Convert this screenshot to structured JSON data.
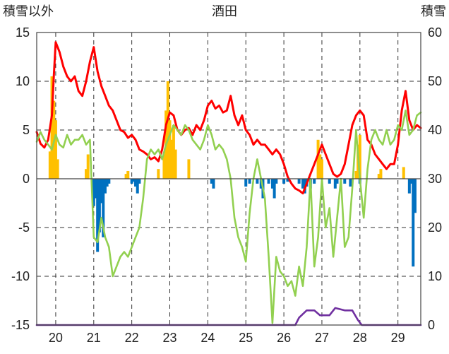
{
  "chart_data": {
    "type": "line",
    "title": "酒田",
    "ylabel_left": "積雪以外",
    "ylabel_right": "積雪",
    "x_ticks": [
      "20",
      "21",
      "22",
      "23",
      "24",
      "25",
      "26",
      "27",
      "28",
      "29"
    ],
    "xlim": [
      19.5,
      29.6
    ],
    "ylim_left": [
      -15,
      15
    ],
    "ylim_right": [
      0,
      60
    ],
    "y_ticks_left": [
      "15",
      "10",
      "5",
      "0",
      "-5",
      "-10",
      "-15"
    ],
    "y_ticks_right": [
      "60",
      "50",
      "40",
      "30",
      "20",
      "10",
      "0"
    ],
    "grid": true,
    "series": [
      {
        "color": "#ff0000",
        "axis": "left",
        "points": [
          [
            19.5,
            4.8
          ],
          [
            19.6,
            3.6
          ],
          [
            19.7,
            3.2
          ],
          [
            19.8,
            4.0
          ],
          [
            19.9,
            6.5
          ],
          [
            19.95,
            10.5
          ],
          [
            20.0,
            14.0
          ],
          [
            20.1,
            13.0
          ],
          [
            20.2,
            11.5
          ],
          [
            20.3,
            10.5
          ],
          [
            20.4,
            10.0
          ],
          [
            20.5,
            10.5
          ],
          [
            20.6,
            9.0
          ],
          [
            20.7,
            8.5
          ],
          [
            20.8,
            10.0
          ],
          [
            20.9,
            12.0
          ],
          [
            21.0,
            13.5
          ],
          [
            21.1,
            11.0
          ],
          [
            21.2,
            9.5
          ],
          [
            21.3,
            8.5
          ],
          [
            21.4,
            7.5
          ],
          [
            21.5,
            7.0
          ],
          [
            21.6,
            6.0
          ],
          [
            21.7,
            5.0
          ],
          [
            21.8,
            4.8
          ],
          [
            21.9,
            4.2
          ],
          [
            22.0,
            4.5
          ],
          [
            22.1,
            4.0
          ],
          [
            22.2,
            3.0
          ],
          [
            22.3,
            2.8
          ],
          [
            22.4,
            2.5
          ],
          [
            22.5,
            2.0
          ],
          [
            22.6,
            2.2
          ],
          [
            22.7,
            1.8
          ],
          [
            22.8,
            3.0
          ],
          [
            22.9,
            5.5
          ],
          [
            23.0,
            6.8
          ],
          [
            23.1,
            6.5
          ],
          [
            23.2,
            5.0
          ],
          [
            23.3,
            4.5
          ],
          [
            23.4,
            5.0
          ],
          [
            23.5,
            5.2
          ],
          [
            23.6,
            4.5
          ],
          [
            23.7,
            5.5
          ],
          [
            23.8,
            5.0
          ],
          [
            23.9,
            6.0
          ],
          [
            24.0,
            7.5
          ],
          [
            24.1,
            8.0
          ],
          [
            24.2,
            7.2
          ],
          [
            24.3,
            7.5
          ],
          [
            24.4,
            6.8
          ],
          [
            24.5,
            7.0
          ],
          [
            24.6,
            8.5
          ],
          [
            24.7,
            6.5
          ],
          [
            24.8,
            5.5
          ],
          [
            24.9,
            6.5
          ],
          [
            25.0,
            5.0
          ],
          [
            25.1,
            4.5
          ],
          [
            25.2,
            3.5
          ],
          [
            25.3,
            4.0
          ],
          [
            25.4,
            3.5
          ],
          [
            25.5,
            3.5
          ],
          [
            25.6,
            3.0
          ],
          [
            25.7,
            2.5
          ],
          [
            25.8,
            3.0
          ],
          [
            25.9,
            2.5
          ],
          [
            26.0,
            1.5
          ],
          [
            26.1,
            0.2
          ],
          [
            26.2,
            -0.5
          ],
          [
            26.3,
            -1.0
          ],
          [
            26.4,
            -1.2
          ],
          [
            26.5,
            -1.5
          ],
          [
            26.6,
            -0.5
          ],
          [
            26.7,
            0.5
          ],
          [
            26.8,
            1.5
          ],
          [
            26.9,
            2.5
          ],
          [
            27.0,
            3.5
          ],
          [
            27.1,
            2.5
          ],
          [
            27.2,
            1.5
          ],
          [
            27.3,
            0.5
          ],
          [
            27.4,
            0.2
          ],
          [
            27.5,
            0.5
          ],
          [
            27.6,
            1.5
          ],
          [
            27.7,
            3.5
          ],
          [
            27.8,
            5.5
          ],
          [
            27.9,
            6.5
          ],
          [
            28.0,
            7.0
          ],
          [
            28.1,
            6.5
          ],
          [
            28.2,
            4.0
          ],
          [
            28.3,
            3.5
          ],
          [
            28.4,
            2.5
          ],
          [
            28.5,
            2.0
          ],
          [
            28.6,
            1.5
          ],
          [
            28.7,
            1.0
          ],
          [
            28.8,
            1.5
          ],
          [
            28.9,
            1.5
          ],
          [
            29.0,
            3.5
          ],
          [
            29.1,
            7.0
          ],
          [
            29.2,
            9.0
          ],
          [
            29.3,
            6.0
          ],
          [
            29.4,
            5.0
          ],
          [
            29.5,
            5.5
          ],
          [
            29.6,
            5.2
          ]
        ]
      },
      {
        "color": "#92d050",
        "axis": "left",
        "points": [
          [
            19.5,
            3.8
          ],
          [
            19.6,
            4.8
          ],
          [
            19.7,
            4.0
          ],
          [
            19.8,
            3.5
          ],
          [
            19.9,
            3.0
          ],
          [
            20.0,
            4.5
          ],
          [
            20.1,
            3.5
          ],
          [
            20.2,
            3.2
          ],
          [
            20.3,
            4.5
          ],
          [
            20.4,
            3.5
          ],
          [
            20.5,
            4.0
          ],
          [
            20.6,
            4.0
          ],
          [
            20.7,
            4.5
          ],
          [
            20.8,
            3.5
          ],
          [
            20.9,
            4.0
          ],
          [
            21.0,
            -6.0
          ],
          [
            21.1,
            -6.5
          ],
          [
            21.2,
            -4.0
          ],
          [
            21.3,
            -6.0
          ],
          [
            21.4,
            -7.0
          ],
          [
            21.5,
            -10.0
          ],
          [
            21.6,
            -9.0
          ],
          [
            21.7,
            -8.0
          ],
          [
            21.8,
            -7.5
          ],
          [
            21.9,
            -8.0
          ],
          [
            22.0,
            -7.0
          ],
          [
            22.1,
            -6.0
          ],
          [
            22.2,
            -5.0
          ],
          [
            22.3,
            -2.0
          ],
          [
            22.4,
            2.0
          ],
          [
            22.5,
            3.0
          ],
          [
            22.6,
            2.5
          ],
          [
            22.7,
            3.0
          ],
          [
            22.8,
            2.0
          ],
          [
            22.9,
            3.5
          ],
          [
            23.0,
            4.5
          ],
          [
            23.1,
            5.5
          ],
          [
            23.2,
            5.0
          ],
          [
            23.3,
            4.5
          ],
          [
            23.4,
            5.5
          ],
          [
            23.5,
            5.0
          ],
          [
            23.6,
            4.0
          ],
          [
            23.7,
            3.5
          ],
          [
            23.8,
            3.0
          ],
          [
            23.9,
            4.0
          ],
          [
            24.0,
            5.5
          ],
          [
            24.1,
            4.5
          ],
          [
            24.2,
            3.0
          ],
          [
            24.3,
            3.5
          ],
          [
            24.4,
            3.0
          ],
          [
            24.5,
            2.0
          ],
          [
            24.6,
            0.0
          ],
          [
            24.7,
            -4.0
          ],
          [
            24.8,
            -6.0
          ],
          [
            24.9,
            -7.0
          ],
          [
            25.0,
            -8.5
          ],
          [
            25.1,
            -3.5
          ],
          [
            25.2,
            0.0
          ],
          [
            25.3,
            2.0
          ],
          [
            25.4,
            0.0
          ],
          [
            25.5,
            -2.0
          ],
          [
            25.6,
            -8.0
          ],
          [
            25.7,
            -14.8
          ],
          [
            25.8,
            -8.0
          ],
          [
            25.9,
            -9.5
          ],
          [
            26.0,
            -10.0
          ],
          [
            26.1,
            -11.0
          ],
          [
            26.2,
            -10.5
          ],
          [
            26.3,
            -12.0
          ],
          [
            26.4,
            -9.0
          ],
          [
            26.5,
            -11.0
          ],
          [
            26.6,
            -7.0
          ],
          [
            26.7,
            0.0
          ],
          [
            26.8,
            -9.0
          ],
          [
            26.9,
            -6.0
          ],
          [
            27.0,
            0.0
          ],
          [
            27.1,
            -5.0
          ],
          [
            27.2,
            -3.0
          ],
          [
            27.3,
            -8.0
          ],
          [
            27.4,
            -4.0
          ],
          [
            27.5,
            0.0
          ],
          [
            27.6,
            -7.0
          ],
          [
            27.7,
            -6.0
          ],
          [
            27.8,
            -1.0
          ],
          [
            27.9,
            5.0
          ],
          [
            28.0,
            0.0
          ],
          [
            28.1,
            -4.0
          ],
          [
            28.2,
            1.0
          ],
          [
            28.3,
            4.0
          ],
          [
            28.4,
            5.0
          ],
          [
            28.5,
            4.0
          ],
          [
            28.6,
            3.5
          ],
          [
            28.7,
            5.0
          ],
          [
            28.8,
            3.5
          ],
          [
            28.9,
            4.0
          ],
          [
            29.0,
            5.5
          ],
          [
            29.1,
            5.0
          ],
          [
            29.2,
            7.0
          ],
          [
            29.3,
            4.5
          ],
          [
            29.4,
            5.0
          ],
          [
            29.5,
            6.5
          ],
          [
            29.6,
            6.8
          ]
        ]
      },
      {
        "color": "#7030a0",
        "axis": "right",
        "points": [
          [
            19.5,
            0
          ],
          [
            26.3,
            0
          ],
          [
            26.4,
            1.5
          ],
          [
            26.6,
            3
          ],
          [
            26.8,
            3
          ],
          [
            26.95,
            2
          ],
          [
            27.2,
            2
          ],
          [
            27.35,
            3.5
          ],
          [
            27.6,
            3
          ],
          [
            27.8,
            3
          ],
          [
            27.95,
            1
          ],
          [
            28.05,
            0
          ],
          [
            29.6,
            0
          ]
        ]
      }
    ],
    "bars": [
      {
        "color": "#ffc000",
        "axis": "left",
        "points": [
          [
            19.85,
            2.8
          ],
          [
            19.9,
            10.5
          ],
          [
            19.95,
            8.0
          ],
          [
            20.0,
            6.0
          ],
          [
            20.05,
            2.0
          ],
          [
            20.8,
            1.0
          ],
          [
            20.85,
            2.5
          ],
          [
            21.85,
            0.5
          ],
          [
            21.9,
            0.8
          ],
          [
            22.7,
            1.0
          ],
          [
            22.85,
            2.5
          ],
          [
            22.9,
            7.0
          ],
          [
            22.95,
            10.0
          ],
          [
            23.0,
            6.0
          ],
          [
            23.05,
            4.0
          ],
          [
            23.1,
            5.5
          ],
          [
            23.15,
            3.0
          ],
          [
            23.5,
            2.0
          ],
          [
            26.9,
            4.0
          ],
          [
            26.95,
            2.5
          ],
          [
            27.0,
            2.0
          ],
          [
            27.9,
            0.8
          ],
          [
            27.95,
            3.5
          ],
          [
            28.0,
            4.5
          ],
          [
            28.5,
            0.5
          ],
          [
            28.55,
            1.0
          ],
          [
            29.15,
            1.2
          ]
        ]
      },
      {
        "color": "#0070c0",
        "axis": "left",
        "points": [
          [
            21.0,
            -2.8
          ],
          [
            21.05,
            -2.0
          ],
          [
            21.1,
            -7.5
          ],
          [
            21.15,
            -5.5
          ],
          [
            21.2,
            -2.5
          ],
          [
            21.25,
            -6.0
          ],
          [
            21.3,
            -1.5
          ],
          [
            21.35,
            -0.8
          ],
          [
            21.4,
            -0.5
          ],
          [
            22.0,
            -0.5
          ],
          [
            22.05,
            -0.3
          ],
          [
            22.1,
            -0.8
          ],
          [
            22.15,
            -1.5
          ],
          [
            22.2,
            -0.5
          ],
          [
            24.1,
            -0.5
          ],
          [
            24.15,
            -1.0
          ],
          [
            25.0,
            -0.8
          ],
          [
            25.1,
            -0.5
          ],
          [
            25.3,
            -0.5
          ],
          [
            25.4,
            -1.0
          ],
          [
            25.45,
            -2.0
          ],
          [
            25.6,
            -0.5
          ],
          [
            25.7,
            -1.0
          ],
          [
            25.75,
            -2.0
          ],
          [
            25.8,
            -0.5
          ],
          [
            26.0,
            -0.5
          ],
          [
            26.1,
            -0.3
          ],
          [
            26.4,
            -0.5
          ],
          [
            26.5,
            -1.0
          ],
          [
            26.55,
            -1.5
          ],
          [
            26.6,
            -0.8
          ],
          [
            26.7,
            -1.0
          ],
          [
            26.8,
            -0.5
          ],
          [
            27.2,
            -0.5
          ],
          [
            27.35,
            -1.0
          ],
          [
            27.4,
            -0.5
          ],
          [
            27.6,
            -0.5
          ],
          [
            27.75,
            -0.8
          ],
          [
            28.0,
            -0.5
          ],
          [
            29.3,
            -1.5
          ],
          [
            29.35,
            -0.5
          ],
          [
            29.4,
            -9.0
          ],
          [
            29.45,
            -3.5
          ]
        ]
      }
    ]
  }
}
